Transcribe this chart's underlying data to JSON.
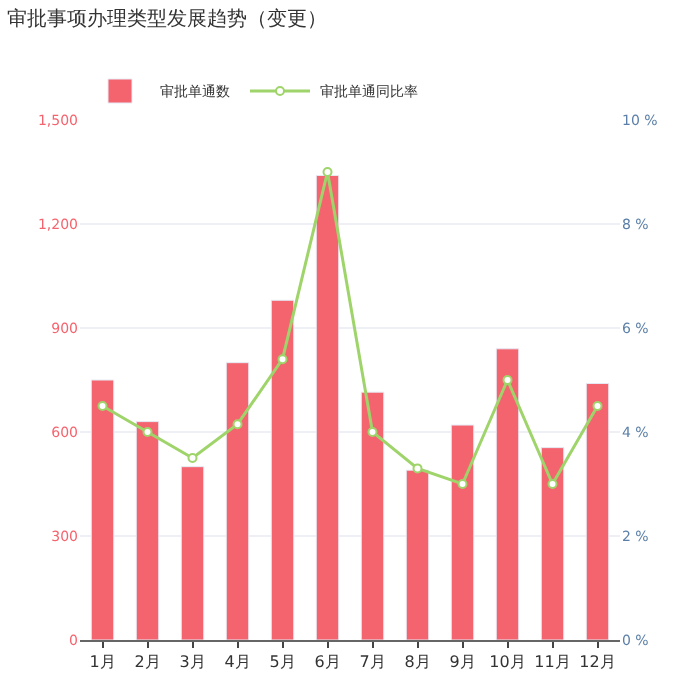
{
  "chart_data": {
    "type": "bar",
    "title": "审批事项办理类型发展趋势（变更）",
    "categories": [
      "1月",
      "2月",
      "3月",
      "4月",
      "5月",
      "6月",
      "7月",
      "8月",
      "9月",
      "10月",
      "11月",
      "12月"
    ],
    "series": [
      {
        "name": "审批单通数",
        "color": "#f4646f",
        "values": [
          750,
          630,
          500,
          800,
          980,
          1340,
          715,
          490,
          620,
          840,
          555,
          740
        ]
      },
      {
        "name": "审批单通同比率",
        "type": "line",
        "axis": "y2",
        "color": "#9fd46a",
        "values": [
          4.5,
          4.0,
          3.5,
          4.15,
          5.4,
          9.0,
          4.0,
          3.3,
          3.0,
          5.0,
          3.0,
          4.5
        ]
      }
    ],
    "ylim": [
      0,
      1500
    ],
    "yticks": [
      0,
      {
        "value": 300,
        "label": "300"
      },
      {
        "value": 600,
        "label": "600"
      },
      {
        "value": 900,
        "label": "900"
      },
      {
        "value": 1200,
        "label": "1,200"
      },
      {
        "value": 1500,
        "label": "1,500"
      }
    ],
    "y2lim": [
      0,
      10
    ],
    "y2ticks": [
      {
        "value": 0,
        "label": "0 %"
      },
      {
        "value": 2,
        "label": "2 %"
      },
      {
        "value": 4,
        "label": "4 %"
      },
      {
        "value": 6,
        "label": "6 %"
      },
      {
        "value": 8,
        "label": "8 %"
      },
      {
        "value": 10,
        "label": "10 %"
      }
    ],
    "grid": "y",
    "legend": "top left",
    "marker": "circle"
  }
}
